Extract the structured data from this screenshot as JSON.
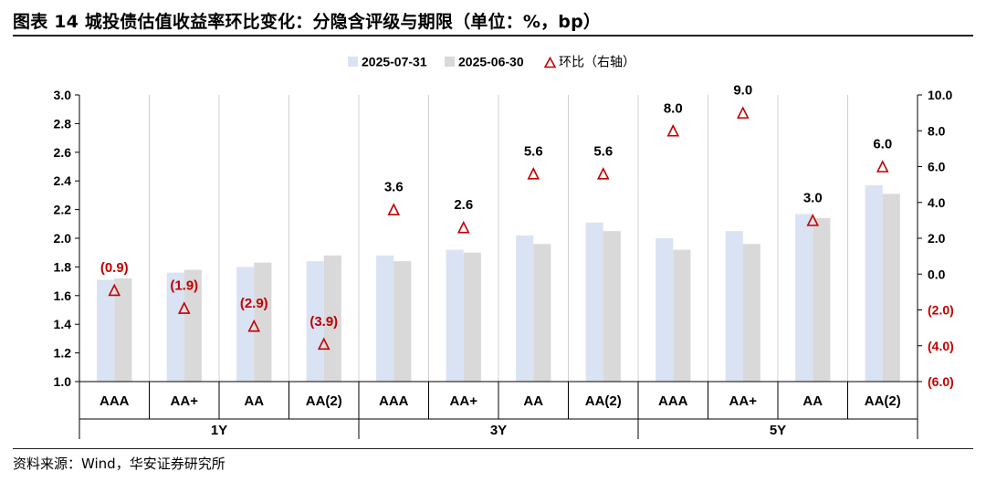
{
  "figure": {
    "title": "图表 14 城投债估值收益率环比变化：分隐含评级与期限（单位：%，bp）",
    "source": "资料来源：Wind，华安证券研究所"
  },
  "chart_data": {
    "type": "bar",
    "categories": [
      {
        "rating": "AAA",
        "term": "1Y"
      },
      {
        "rating": "AA+",
        "term": "1Y"
      },
      {
        "rating": "AA",
        "term": "1Y"
      },
      {
        "rating": "AA(2)",
        "term": "1Y"
      },
      {
        "rating": "AAA",
        "term": "3Y"
      },
      {
        "rating": "AA+",
        "term": "3Y"
      },
      {
        "rating": "AA",
        "term": "3Y"
      },
      {
        "rating": "AA(2)",
        "term": "3Y"
      },
      {
        "rating": "AAA",
        "term": "5Y"
      },
      {
        "rating": "AA+",
        "term": "5Y"
      },
      {
        "rating": "AA",
        "term": "5Y"
      },
      {
        "rating": "AA(2)",
        "term": "5Y"
      }
    ],
    "groups": [
      "1Y",
      "3Y",
      "5Y"
    ],
    "series": [
      {
        "name": "2025-07-31",
        "kind": "bar",
        "axis": "left",
        "color": "#dae3f3",
        "values": [
          1.71,
          1.76,
          1.8,
          1.84,
          1.88,
          1.92,
          2.02,
          2.11,
          2.0,
          2.05,
          2.17,
          2.37
        ]
      },
      {
        "name": "2025-06-30",
        "kind": "bar",
        "axis": "left",
        "color": "#d9d9d9",
        "values": [
          1.72,
          1.78,
          1.83,
          1.88,
          1.84,
          1.9,
          1.96,
          2.05,
          1.92,
          1.96,
          2.14,
          2.31
        ]
      },
      {
        "name": "环比（右轴）",
        "kind": "marker",
        "axis": "right",
        "color": "#c00000",
        "marker": "triangle-open",
        "values": [
          -0.9,
          -1.9,
          -2.9,
          -3.9,
          3.6,
          2.6,
          5.6,
          5.6,
          8.0,
          9.0,
          3.0,
          6.0
        ],
        "labels": [
          "(0.9)",
          "(1.9)",
          "(2.9)",
          "(3.9)",
          "3.6",
          "2.6",
          "5.6",
          "5.6",
          "8.0",
          "9.0",
          "3.0",
          "6.0"
        ]
      }
    ],
    "y_left": {
      "min": 1.0,
      "max": 3.0,
      "step": 0.2,
      "tick_labels": [
        "1.0",
        "1.2",
        "1.4",
        "1.6",
        "1.8",
        "2.0",
        "2.2",
        "2.4",
        "2.6",
        "2.8",
        "3.0"
      ]
    },
    "y_right": {
      "min": -6.0,
      "max": 10.0,
      "step": 2.0,
      "tick_labels": [
        "(6.0)",
        "(4.0)",
        "(2.0)",
        "0.0",
        "2.0",
        "4.0",
        "6.0",
        "8.0",
        "10.0"
      ]
    },
    "grid": "vertical-category-lines",
    "legend": "top-center"
  }
}
